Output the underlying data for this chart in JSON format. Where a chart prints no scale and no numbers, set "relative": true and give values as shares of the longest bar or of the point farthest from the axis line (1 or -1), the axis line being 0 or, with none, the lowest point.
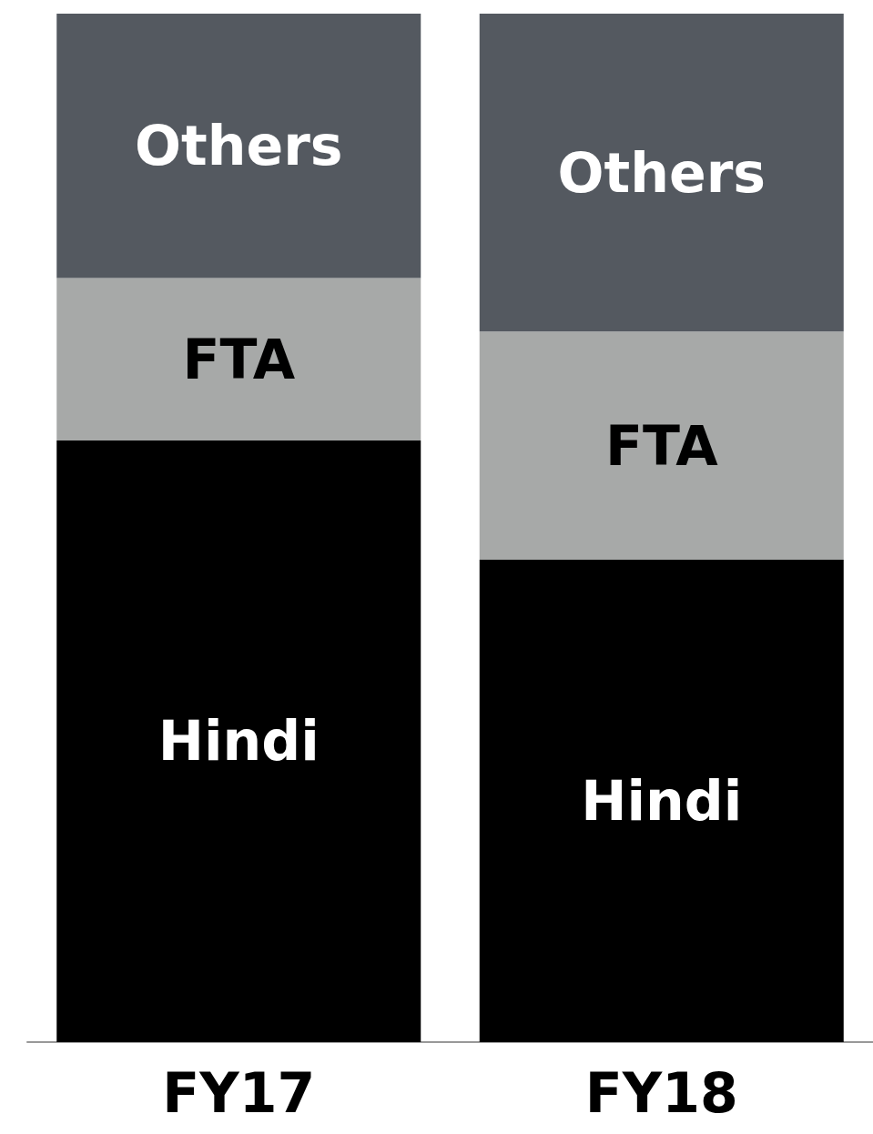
{
  "chart_data": {
    "type": "bar",
    "stacked": true,
    "relative": true,
    "legend": false,
    "categories": [
      "FY17",
      "FY18"
    ],
    "series": [
      {
        "name": "Hindi",
        "color": "#000000",
        "values": [
          0.585,
          0.469
        ]
      },
      {
        "name": "FTA",
        "color": "#a7a9a8",
        "values": [
          0.158,
          0.222
        ]
      },
      {
        "name": "Others",
        "color": "#545960",
        "values": [
          0.257,
          0.309
        ]
      }
    ]
  }
}
